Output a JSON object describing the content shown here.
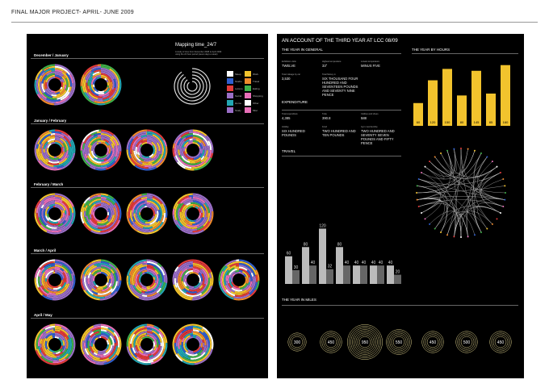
{
  "page_title": "FINAL MAJOR PROJECT- APRIL- JUNE 2009",
  "left_panel": {
    "title": "Mapping time_24/7",
    "subtitle": "A study of time from December 2008 to April 2009 using the 24 hour period (seven days a week)",
    "sections": [
      {
        "label": "December / January",
        "count": 2
      },
      {
        "label": "January / February",
        "count": 4
      },
      {
        "label": "February / March",
        "count": 4
      },
      {
        "label": "March / April",
        "count": 5
      },
      {
        "label": "April / May",
        "count": 4
      }
    ],
    "legend_labels": [
      "Sleep",
      "Work",
      "Studio",
      "Travel",
      "Leisure",
      "Eating",
      "Social",
      "Shopping",
      "Home",
      "Other",
      "Study",
      "Misc"
    ]
  },
  "right_panel": {
    "title": "AN ACCOUNT OF THE THIRD YEAR AT LCC 08/09",
    "year_in_general": {
      "heading": "THE YEAR IN GENERAL",
      "rows": [
        {
          "label": "Exhibition visits",
          "value": "TWELVE"
        },
        {
          "label": "Highest temperature",
          "value": "33°"
        },
        {
          "label": "Lowest temperature",
          "value": "MINUS FIVE"
        },
        {
          "label": "Total mileage by car",
          "value": "3,530"
        },
        {
          "label": "Total Money in",
          "value": "SIX THOUSAND FOUR HUNDRED AND SEVENTEEN POUNDS AND SEVENTY NINE PENCE"
        }
      ]
    },
    "expenditure": {
      "heading": "EXPENDITURE",
      "rows": [
        {
          "label": "Total expenditure",
          "value": "4,385"
        },
        {
          "label": "Tube",
          "value": "390.8"
        },
        {
          "label": "Clothes and shoes",
          "value": "588"
        },
        {
          "label": "Holiday",
          "value": "SIX HUNDRED POUNDS"
        },
        {
          "label": "Food",
          "value": "TWO HUNDRED AND TEN POUNDS"
        },
        {
          "label": "Gym membership",
          "value": "TWO HUNDRED AND SEVENTY SEVEN POUNDS AND FIFTY PENCE"
        }
      ]
    },
    "travel": {
      "heading": "TRAVEL"
    },
    "year_by_hours": {
      "heading": "THE YEAR BY HOURS",
      "values": [
        60,
        120,
        150,
        80,
        145,
        85,
        160
      ]
    },
    "miles": {
      "heading": "THE YEAR IN MILES",
      "values": [
        300,
        450,
        950,
        550,
        450,
        500,
        450
      ]
    },
    "travel_bars": {
      "pairs": [
        [
          60,
          30
        ],
        [
          80,
          40
        ],
        [
          120,
          32
        ],
        [
          80,
          40
        ],
        [
          40,
          40
        ],
        [
          40,
          40
        ],
        [
          40,
          20
        ]
      ]
    }
  },
  "colors": {
    "purple": "#9b6fc8",
    "yellow": "#f2c32d",
    "orange": "#f08a2c",
    "blue": "#2f5fcf",
    "red": "#e23a3a",
    "green": "#3fb04a",
    "teal": "#22a6b3",
    "pink": "#e86fb8",
    "white": "#ffffff"
  }
}
